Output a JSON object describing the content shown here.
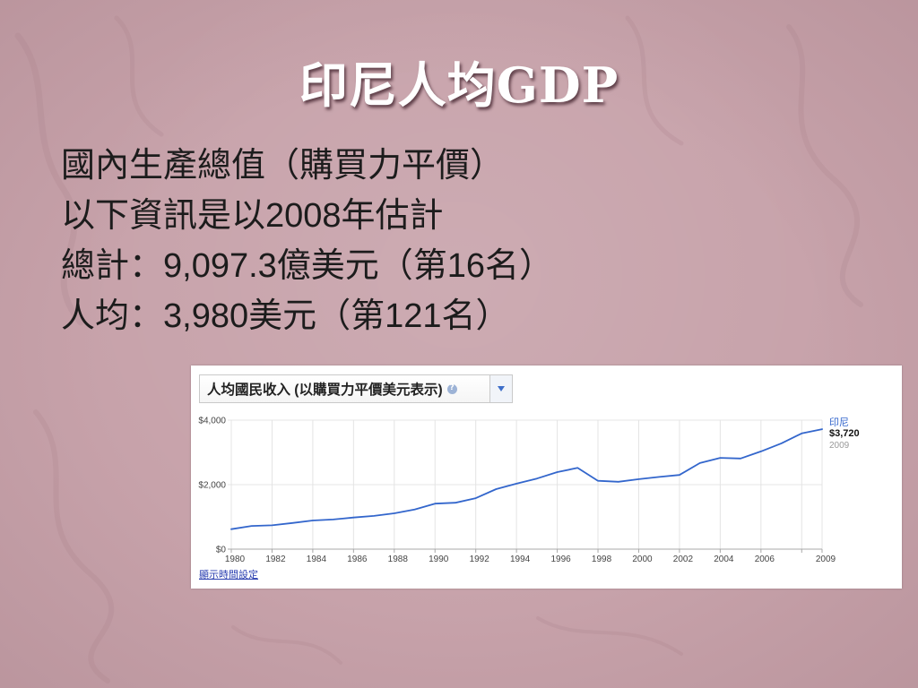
{
  "slide": {
    "title": "印尼人均GDP",
    "lines": [
      "國內生產總值（購買力平價）",
      "以下資訊是以2008年估計",
      "總計：9,097.3億美元（第16名）",
      "人均：3,980美元（第121名）"
    ]
  },
  "chart_panel": {
    "time_settings_link": "顯示時間設定",
    "icons": {
      "help": "help-circle-icon",
      "dropdown": "triangle-down-icon"
    }
  },
  "colors": {
    "slide_background": "#c7a2aa",
    "title_text": "#ffffff",
    "body_text": "#1c1c1c",
    "panel_background": "#ffffff",
    "series_line": "#3366cc",
    "grid": "#e4e4e4",
    "axis": "#a8a8a8",
    "tick_text": "#444444",
    "link": "#2a3fb0"
  },
  "chart_data": {
    "type": "line",
    "title": "人均國民收入 (以購買力平價美元表示)",
    "x": [
      1980,
      1981,
      1982,
      1983,
      1984,
      1985,
      1986,
      1987,
      1988,
      1989,
      1990,
      1991,
      1992,
      1993,
      1994,
      1995,
      1996,
      1997,
      1998,
      1999,
      2000,
      2001,
      2002,
      2003,
      2004,
      2005,
      2006,
      2007,
      2008,
      2009
    ],
    "series": [
      {
        "name": "印尼",
        "values": [
          620,
          720,
          740,
          810,
          890,
          920,
          980,
          1030,
          1110,
          1230,
          1410,
          1440,
          1580,
          1860,
          2030,
          2190,
          2390,
          2520,
          2120,
          2090,
          2170,
          2240,
          2300,
          2670,
          2830,
          2810,
          3030,
          3280,
          3590,
          3720
        ],
        "end_value_label": "$3,720",
        "end_year_label": "2009"
      }
    ],
    "x_tick_labels": [
      "1980",
      "1982",
      "1984",
      "1986",
      "1988",
      "1990",
      "1992",
      "1994",
      "1996",
      "1998",
      "2000",
      "2002",
      "2004",
      "2006",
      "2009"
    ],
    "y_ticks": [
      0,
      2000,
      4000
    ],
    "y_tick_labels": [
      "$0",
      "$2,000",
      "$4,000"
    ],
    "xlim": [
      1980,
      2009
    ],
    "ylim": [
      0,
      4000
    ],
    "grid": true,
    "legend_position": "right"
  }
}
